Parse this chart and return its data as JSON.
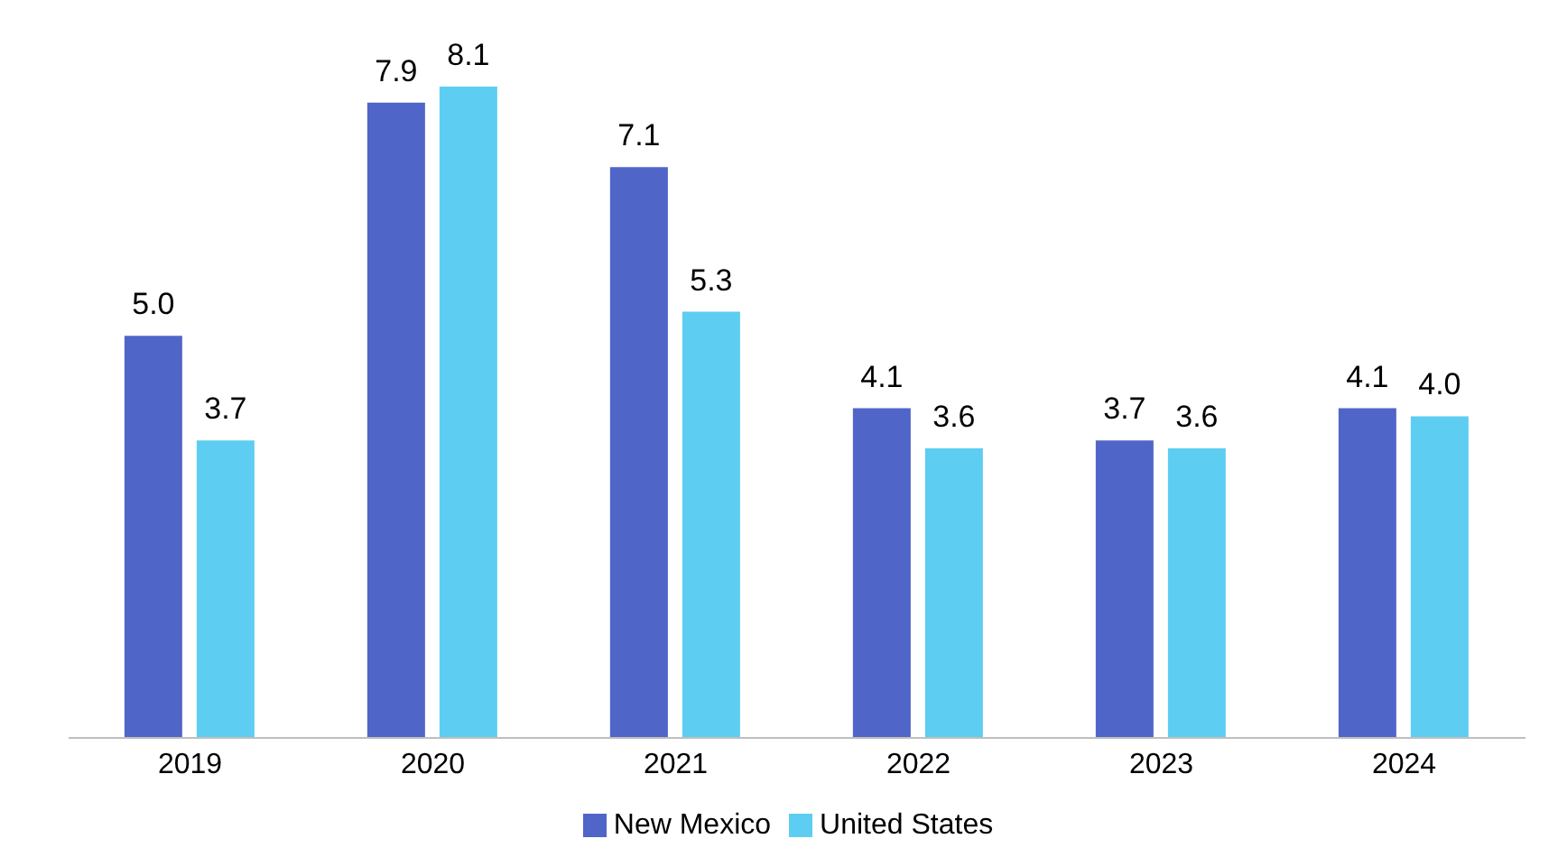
{
  "chart_data": {
    "type": "bar",
    "categories": [
      "2019",
      "2020",
      "2021",
      "2022",
      "2023",
      "2024"
    ],
    "series": [
      {
        "name": "New Mexico",
        "color": "#5065c8",
        "values": [
          5.0,
          7.9,
          7.1,
          4.1,
          3.7,
          4.1
        ],
        "value_labels": [
          "5.0",
          "7.9",
          "7.1",
          "4.1",
          "3.7",
          "4.1"
        ]
      },
      {
        "name": "United States",
        "color": "#5ecdf2",
        "values": [
          3.7,
          8.1,
          5.3,
          3.6,
          3.6,
          4.0
        ],
        "value_labels": [
          "3.7",
          "8.1",
          "5.3",
          "3.6",
          "3.6",
          "4.0"
        ]
      }
    ],
    "legend": "bottom",
    "grid": false
  }
}
